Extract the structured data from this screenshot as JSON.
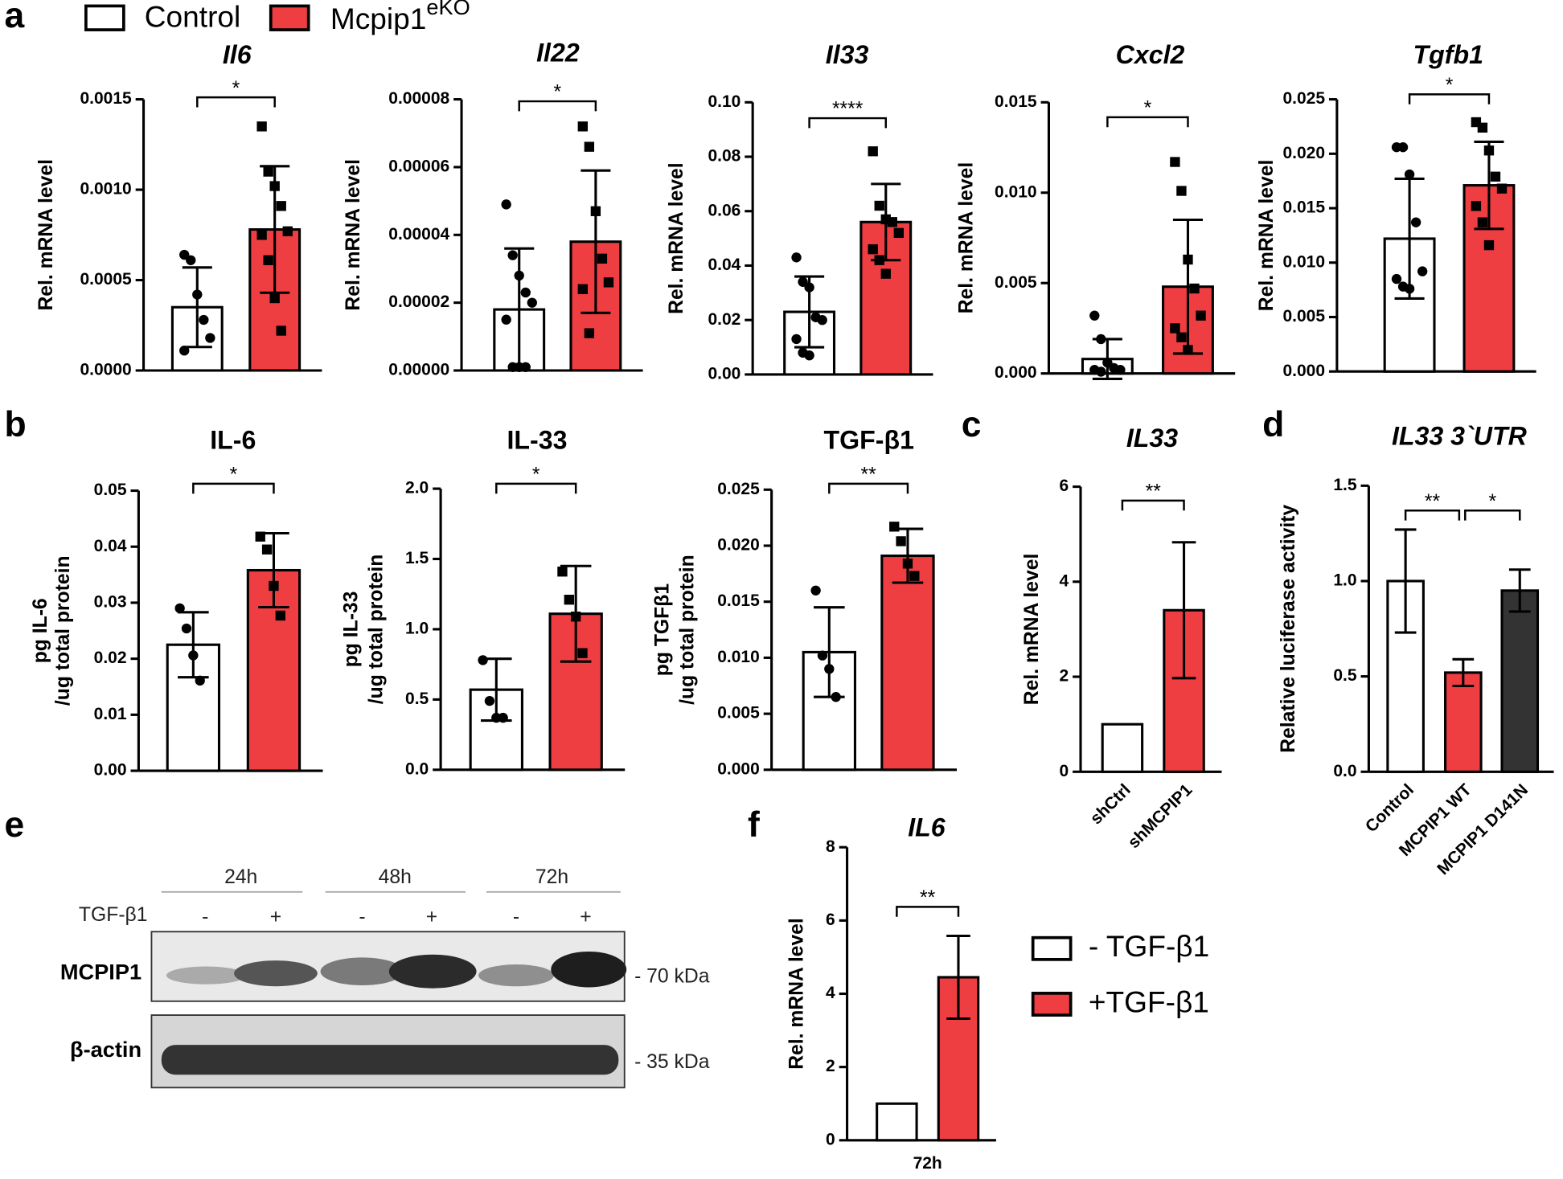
{
  "panel_labels": [
    "a",
    "b",
    "c",
    "d",
    "e",
    "f"
  ],
  "legend_a": [
    {
      "name": "Control",
      "color": "#ffffff"
    },
    {
      "name": "Mcpip1",
      "superscript": "eKO",
      "color": "#ef3e42"
    }
  ],
  "legend_f": [
    {
      "name": "- TGF-β1",
      "color": "#ffffff"
    },
    {
      "name": "+TGF-β1",
      "color": "#ef3e42"
    }
  ],
  "blot": {
    "timepoints": [
      "24h",
      "48h",
      "72h"
    ],
    "treatment_label": "TGF-β1",
    "treatment": [
      "-",
      "+",
      "-",
      "+",
      "-",
      "+"
    ],
    "rows": [
      {
        "label": "MCPIP1",
        "size": "- 70 kDa"
      },
      {
        "label": "β-actin",
        "size": "- 35 kDa"
      }
    ]
  },
  "chart_data": [
    {
      "type": "bar",
      "title": "Il6",
      "ylabel": "Rel. mRNA level",
      "ylim": [
        0,
        0.0015
      ],
      "yticks": [
        {
          "value": 0,
          "label": "0.0000"
        },
        {
          "value": 0.0005,
          "label": "0.0005"
        },
        {
          "value": 0.001,
          "label": "0.0010"
        },
        {
          "value": 0.0015,
          "label": "0.0015"
        }
      ],
      "values": [
        0.00035,
        0.00078
      ],
      "errors": [
        0.00022,
        0.00035
      ],
      "colors": [
        "#ffffff",
        "#ef3e42"
      ],
      "points": [
        [
          0.00064,
          0.00061,
          0.00042,
          0.00028,
          0.00018,
          0.00011
        ],
        [
          0.00135,
          0.0011,
          0.00102,
          0.00091,
          0.00077,
          0.00075,
          0.00061,
          0.0004,
          0.00022
        ]
      ],
      "significance": [
        "*"
      ]
    },
    {
      "type": "bar",
      "title": "Il22",
      "ylabel": "Rel. mRNA level",
      "ylim": [
        0,
        8e-05
      ],
      "yticks": [
        {
          "value": 0,
          "label": "0.00000"
        },
        {
          "value": 2e-05,
          "label": "0.00002"
        },
        {
          "value": 4e-05,
          "label": "0.00004"
        },
        {
          "value": 6e-05,
          "label": "0.00006"
        },
        {
          "value": 8e-05,
          "label": "0.00008"
        }
      ],
      "values": [
        1.8e-05,
        3.8e-05
      ],
      "errors": [
        1.8e-05,
        2.1e-05
      ],
      "colors": [
        "#ffffff",
        "#ef3e42"
      ],
      "points": [
        [
          4.9e-05,
          3.4e-05,
          2.8e-05,
          2.3e-05,
          2e-05,
          1.5e-05,
          1e-06,
          1e-06,
          1e-06
        ],
        [
          7.2e-05,
          6.6e-05,
          4.7e-05,
          3.3e-05,
          2.6e-05,
          2.4e-05,
          1.1e-05
        ]
      ],
      "significance": [
        "*"
      ]
    },
    {
      "type": "bar",
      "title": "Il33",
      "ylabel": "Rel. mRNA level",
      "ylim": [
        0,
        0.1
      ],
      "yticks": [
        {
          "value": 0,
          "label": "0.00"
        },
        {
          "value": 0.02,
          "label": "0.02"
        },
        {
          "value": 0.04,
          "label": "0.04"
        },
        {
          "value": 0.06,
          "label": "0.06"
        },
        {
          "value": 0.08,
          "label": "0.08"
        },
        {
          "value": 0.1,
          "label": "0.10"
        }
      ],
      "values": [
        0.023,
        0.056
      ],
      "errors": [
        0.013,
        0.014
      ],
      "colors": [
        "#ffffff",
        "#ef3e42"
      ],
      "points": [
        [
          0.043,
          0.034,
          0.032,
          0.021,
          0.02,
          0.013,
          0.008,
          0.007
        ],
        [
          0.082,
          0.062,
          0.057,
          0.056,
          0.052,
          0.046,
          0.042,
          0.037
        ]
      ],
      "significance": [
        "****"
      ]
    },
    {
      "type": "bar",
      "title": "Cxcl2",
      "ylabel": "Rel. mRNA level",
      "ylim": [
        0,
        0.015
      ],
      "yticks": [
        {
          "value": 0,
          "label": "0.000"
        },
        {
          "value": 0.005,
          "label": "0.005"
        },
        {
          "value": 0.01,
          "label": "0.010"
        },
        {
          "value": 0.015,
          "label": "0.015"
        }
      ],
      "values": [
        0.0008,
        0.0048
      ],
      "errors": [
        0.0011,
        0.0037
      ],
      "colors": [
        "#ffffff",
        "#ef3e42"
      ],
      "points": [
        [
          0.0032,
          0.0019,
          0.0006,
          0.0003,
          0.0002,
          0.0002,
          0.0001
        ],
        [
          0.0117,
          0.0101,
          0.0063,
          0.0047,
          0.0032,
          0.0025,
          0.002,
          0.0013
        ]
      ],
      "significance": [
        "*"
      ]
    },
    {
      "type": "bar",
      "title": "Tgfb1",
      "ylabel": "Rel. mRNA level",
      "ylim": [
        0,
        0.025
      ],
      "yticks": [
        {
          "value": 0,
          "label": "0.000"
        },
        {
          "value": 0.005,
          "label": "0.005"
        },
        {
          "value": 0.01,
          "label": "0.010"
        },
        {
          "value": 0.015,
          "label": "0.015"
        },
        {
          "value": 0.02,
          "label": "0.020"
        },
        {
          "value": 0.025,
          "label": "0.025"
        }
      ],
      "values": [
        0.0122,
        0.0171
      ],
      "errors": [
        0.0055,
        0.004
      ],
      "colors": [
        "#ffffff",
        "#ef3e42"
      ],
      "points": [
        [
          0.0206,
          0.0206,
          0.0181,
          0.0137,
          0.0092,
          0.0085,
          0.0078,
          0.0076
        ],
        [
          0.0229,
          0.0224,
          0.0203,
          0.0179,
          0.0168,
          0.0152,
          0.0137,
          0.0116
        ]
      ],
      "significance": [
        "*"
      ]
    },
    {
      "type": "bar",
      "title": "IL-6",
      "ylabel": [
        "pg IL-6",
        "/ug total protein"
      ],
      "ylim": [
        0,
        0.05
      ],
      "yticks": [
        {
          "value": 0,
          "label": "0.00"
        },
        {
          "value": 0.01,
          "label": "0.01"
        },
        {
          "value": 0.02,
          "label": "0.02"
        },
        {
          "value": 0.03,
          "label": "0.03"
        },
        {
          "value": 0.04,
          "label": "0.04"
        },
        {
          "value": 0.05,
          "label": "0.05"
        }
      ],
      "values": [
        0.0225,
        0.0358
      ],
      "errors": [
        0.0058,
        0.0066
      ],
      "colors": [
        "#ffffff",
        "#ef3e42"
      ],
      "points": [
        [
          0.029,
          0.0254,
          0.0206,
          0.0161
        ],
        [
          0.0418,
          0.0395,
          0.033,
          0.0277
        ]
      ],
      "significance": [
        "*"
      ]
    },
    {
      "type": "bar",
      "title": "IL-33",
      "ylabel": [
        "pg IL-33",
        "/ug total protein"
      ],
      "ylim": [
        0,
        2
      ],
      "yticks": [
        {
          "value": 0,
          "label": "0.0"
        },
        {
          "value": 0.5,
          "label": "0.5"
        },
        {
          "value": 1,
          "label": "1.0"
        },
        {
          "value": 1.5,
          "label": "1.5"
        },
        {
          "value": 2,
          "label": "2.0"
        }
      ],
      "values": [
        0.57,
        1.11
      ],
      "errors": [
        0.22,
        0.34
      ],
      "colors": [
        "#ffffff",
        "#ef3e42"
      ],
      "points": [
        [
          0.78,
          0.49,
          0.37,
          0.37
        ],
        [
          1.41,
          1.21,
          1.09,
          0.83
        ]
      ],
      "significance": [
        "*"
      ]
    },
    {
      "type": "bar",
      "title": "TGF-β1",
      "ylabel": [
        "pg TGFβ1",
        "/ug total protein"
      ],
      "ylim": [
        0,
        0.025
      ],
      "yticks": [
        {
          "value": 0,
          "label": "0.000"
        },
        {
          "value": 0.005,
          "label": "0.005"
        },
        {
          "value": 0.01,
          "label": "0.010"
        },
        {
          "value": 0.015,
          "label": "0.015"
        },
        {
          "value": 0.02,
          "label": "0.020"
        },
        {
          "value": 0.025,
          "label": "0.025"
        }
      ],
      "values": [
        0.0105,
        0.0191
      ],
      "errors": [
        0.004,
        0.0024
      ],
      "colors": [
        "#ffffff",
        "#ef3e42"
      ],
      "points": [
        [
          0.016,
          0.0102,
          0.009,
          0.0065
        ],
        [
          0.0217,
          0.0204,
          0.0184,
          0.0173
        ]
      ],
      "significance": [
        "**"
      ]
    },
    {
      "type": "bar",
      "title": "IL33",
      "ylabel": "Rel. mRNA level",
      "ylim": [
        0,
        6
      ],
      "yticks": [
        0,
        2,
        4,
        6
      ],
      "categories": [
        "shCtrl",
        "shMCPIP1"
      ],
      "values": [
        1.0,
        3.4
      ],
      "errors": [
        null,
        1.43
      ],
      "colors": [
        "#ffffff",
        "#ef3e42"
      ],
      "significance": [
        "**"
      ]
    },
    {
      "type": "bar",
      "title": "IL33 3`UTR",
      "ylabel": "Relative luciferase activity",
      "ylim": [
        0,
        1.5
      ],
      "yticks": [
        {
          "value": 0,
          "label": "0.0"
        },
        0.5,
        {
          "value": 1,
          "label": "1.0"
        },
        1.5
      ],
      "categories": [
        "Control",
        "MCPIP1 WT",
        "MCPIP1 D141N"
      ],
      "values": [
        1.0,
        0.52,
        0.95
      ],
      "errors": [
        0.27,
        0.07,
        0.11
      ],
      "colors": [
        "#ffffff",
        "#ef3e42",
        "#333333"
      ],
      "significance": [
        "**",
        "*"
      ]
    },
    {
      "type": "bar",
      "title": "IL6",
      "ylabel": "Rel. mRNA level",
      "ylim": [
        0,
        8
      ],
      "yticks": [
        0,
        2,
        4,
        6,
        8
      ],
      "xlabel": "72h",
      "values": [
        1.0,
        4.45
      ],
      "errors": [
        null,
        1.13
      ],
      "colors": [
        "#ffffff",
        "#ef3e42"
      ],
      "significance": [
        "**"
      ]
    }
  ]
}
